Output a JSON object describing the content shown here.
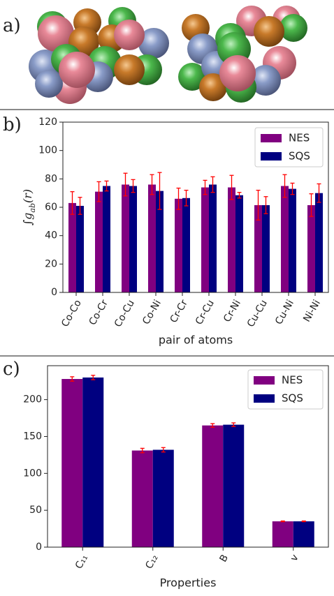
{
  "panel_labels": [
    "a)",
    "b)",
    "c)"
  ],
  "chart_data": [
    {
      "type": "bar",
      "xlabel": "pair of atoms",
      "ylabel": [
        "∫g",
        "ab",
        "(r)"
      ],
      "categories": [
        "Co-Co",
        "Co-Cr",
        "Co-Cu",
        "Co-Ni",
        "Cr-Cr",
        "Cr-Cu",
        "Cr-Ni",
        "Cu-Cu",
        "Cu-Ni",
        "Ni-Ni"
      ],
      "series": [
        {
          "name": "NES",
          "color": "#800080",
          "values": [
            63,
            71,
            76,
            76,
            66,
            74,
            74,
            61.5,
            75,
            61.5
          ],
          "errors": [
            8,
            7,
            8,
            7,
            7.5,
            5,
            8.5,
            10.5,
            8,
            8
          ]
        },
        {
          "name": "SQS",
          "color": "#000080",
          "values": [
            61,
            75,
            75,
            71.5,
            66.5,
            76,
            68.5,
            61.5,
            73,
            70
          ],
          "errors": [
            6,
            3.5,
            4.5,
            13,
            5.5,
            5.5,
            2,
            6,
            4,
            6.5
          ]
        }
      ],
      "error_color": "#ff0000",
      "ylim": [
        0,
        120
      ],
      "yticks": [
        0,
        20,
        40,
        60,
        80,
        100,
        120
      ],
      "legend": "upper right"
    },
    {
      "type": "bar",
      "xlabel": "Properties",
      "categories": [
        "C₁₁",
        "C₁₂",
        "B",
        "v"
      ],
      "series": [
        {
          "name": "NES",
          "color": "#800080",
          "values": [
            228,
            131,
            165,
            35
          ],
          "errors": [
            3,
            3,
            2.5,
            0.5
          ]
        },
        {
          "name": "SQS",
          "color": "#000080",
          "values": [
            230,
            132,
            166,
            35
          ],
          "errors": [
            3,
            3,
            2.5,
            0.5
          ]
        }
      ],
      "error_color": "#ff0000",
      "ylim": [
        0,
        246
      ],
      "yticks": [
        0,
        50,
        100,
        150,
        200
      ],
      "legend": "upper right"
    }
  ]
}
